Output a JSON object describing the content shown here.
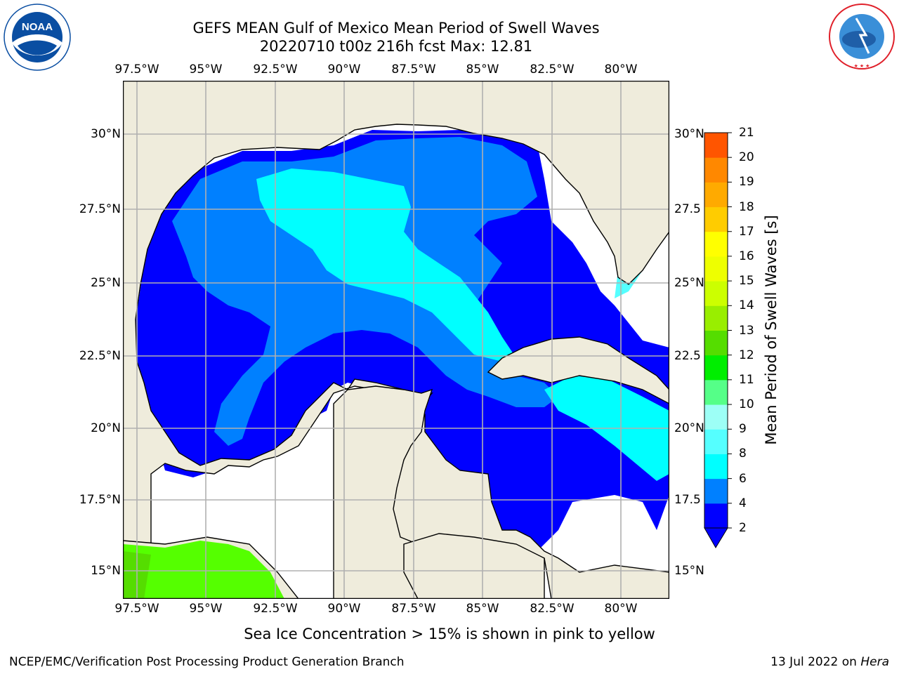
{
  "title": {
    "line1": "GEFS MEAN Gulf of Mexico Mean Period of Swell Waves",
    "line2": "20220710 t00z 216h fcst   Max: 12.81"
  },
  "logos": {
    "left": {
      "name": "noaa-logo",
      "text": "NOAA",
      "ring_text": "NATIONAL OCEANIC AND ATMOSPHERIC ADMINISTRATION · U.S. DEPARTMENT OF COMMERCE",
      "color": "#0a4ea2"
    },
    "right": {
      "name": "nws-logo",
      "ring_text": "NATIONAL WEATHER SERVICE",
      "color": "#e0202a"
    }
  },
  "map": {
    "lon_labels": [
      "97.5°W",
      "95°W",
      "92.5°W",
      "90°W",
      "87.5°W",
      "85°W",
      "82.5°W",
      "80°W"
    ],
    "lat_labels_left": [
      "30°N",
      "27.5°N",
      "25°N",
      "22.5°N",
      "20°N",
      "17.5°N",
      "15°N"
    ],
    "lat_labels_right": [
      "30°N",
      "27.5",
      "25°N",
      "22.5",
      "20°N",
      "17.5",
      "15°N"
    ],
    "land_color": "#efecdc",
    "grid": true
  },
  "colorbar": {
    "title": "Mean Period of Swell Waves [s]",
    "ticks": [
      "2",
      "4",
      "6",
      "8",
      "9",
      "10",
      "11",
      "12",
      "13",
      "14",
      "15",
      "16",
      "17",
      "18",
      "19",
      "20",
      "21"
    ],
    "colors": [
      "#0000ff",
      "#0080ff",
      "#00ffff",
      "#55ffff",
      "#9dfff6",
      "#55ff88",
      "#00ee00",
      "#55dd00",
      "#99ee00",
      "#ccff00",
      "#eeff00",
      "#ffff00",
      "#ffcc00",
      "#ffaa00",
      "#ff8800",
      "#ff5500",
      "#ff2200",
      "#ff0000"
    ],
    "extend": "min"
  },
  "note": "Sea Ice Concentration > 15% is shown in pink to yellow",
  "footer": {
    "left": "NCEP/EMC/Verification Post Processing Product Generation Branch",
    "right_date": "13 Jul 2022 on ",
    "right_host": "Hera"
  }
}
